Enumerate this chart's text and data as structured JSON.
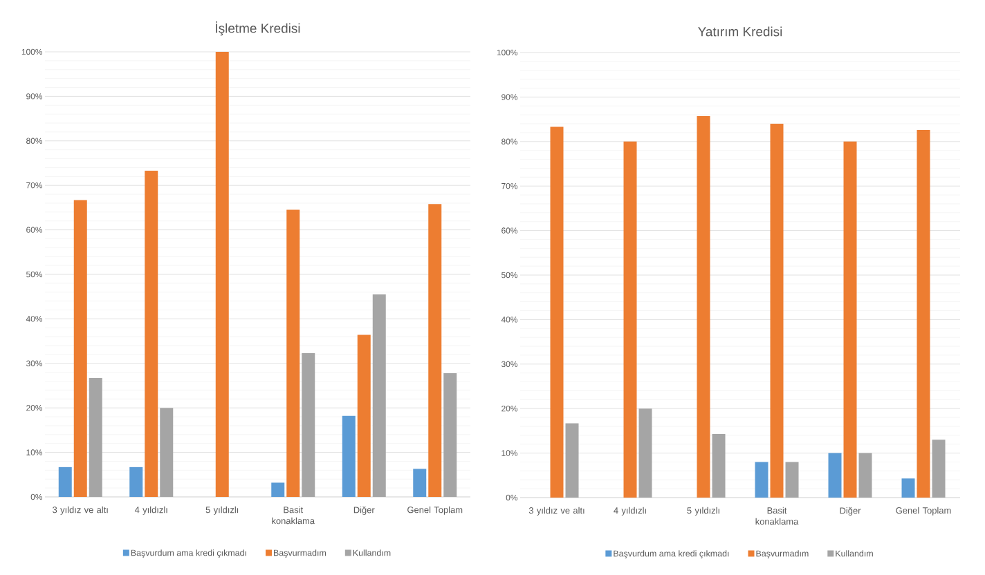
{
  "chart_data": [
    {
      "type": "bar",
      "title": "İşletme Kredisi",
      "categories": [
        "3 yıldız ve altı",
        "4 yıldızlı",
        "5 yıldızlı",
        "Basit konaklama",
        "Diğer",
        "Genel Toplam"
      ],
      "series": [
        {
          "name": "Başvurdum ama kredi çıkmadı",
          "color": "#5b9bd5",
          "values": [
            6.7,
            6.7,
            0,
            3.2,
            18.2,
            6.3
          ]
        },
        {
          "name": "Başvurmadım",
          "color": "#ed7d31",
          "values": [
            66.7,
            73.3,
            100,
            64.5,
            36.4,
            65.8
          ]
        },
        {
          "name": "Kullandım",
          "color": "#a5a5a5",
          "values": [
            26.7,
            20,
            0,
            32.3,
            45.5,
            27.8
          ]
        }
      ],
      "ylim": [
        0,
        100
      ],
      "yticks": [
        {
          "value": 0,
          "label": "0%"
        },
        {
          "value": 10,
          "label": "10%"
        },
        {
          "value": 20,
          "label": "20%"
        },
        {
          "value": 30,
          "label": "30%"
        },
        {
          "value": 40,
          "label": "40%"
        },
        {
          "value": 50,
          "label": "50%"
        },
        {
          "value": 60,
          "label": "60%"
        },
        {
          "value": 70,
          "label": "70%"
        },
        {
          "value": 80,
          "label": "80%"
        },
        {
          "value": 90,
          "label": "90%"
        },
        {
          "value": 100,
          "label": "100%"
        }
      ],
      "grid": "y",
      "legend": "bottom"
    },
    {
      "type": "bar",
      "title": "Yatırım Kredisi",
      "categories": [
        "3 yıldız ve altı",
        "4 yıldızlı",
        "5 yıldızlı",
        "Basit konaklama",
        "Diğer",
        "Genel Toplam"
      ],
      "series": [
        {
          "name": "Başvurdum ama kredi çıkmadı",
          "color": "#5b9bd5",
          "values": [
            0,
            0,
            0,
            8,
            10,
            4.3
          ]
        },
        {
          "name": "Başvurmadım",
          "color": "#ed7d31",
          "values": [
            83.3,
            80,
            85.7,
            84,
            80,
            82.6
          ]
        },
        {
          "name": "Kullandım",
          "color": "#a5a5a5",
          "values": [
            16.7,
            20,
            14.3,
            8,
            10,
            13
          ]
        }
      ],
      "ylim": [
        0,
        100
      ],
      "yticks": [
        {
          "value": 0,
          "label": "0%"
        },
        {
          "value": 10,
          "label": "10%"
        },
        {
          "value": 20,
          "label": "20%"
        },
        {
          "value": 30,
          "label": "30%"
        },
        {
          "value": 40,
          "label": "40%"
        },
        {
          "value": 50,
          "label": "50%"
        },
        {
          "value": 60,
          "label": "60%"
        },
        {
          "value": 70,
          "label": "70%"
        },
        {
          "value": 80,
          "label": "80%"
        },
        {
          "value": 90,
          "label": "90%"
        },
        {
          "value": 100,
          "label": "100%"
        }
      ],
      "grid": "y",
      "legend": "bottom"
    }
  ]
}
